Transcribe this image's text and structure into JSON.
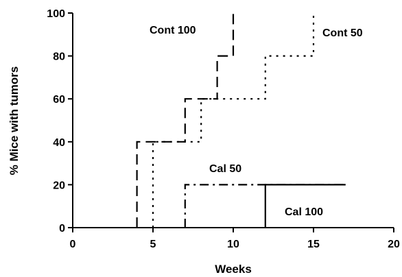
{
  "chart_data": {
    "type": "line",
    "step": true,
    "xlabel": "Weeks",
    "ylabel": "% Mice with tumors",
    "xlim": [
      0,
      20
    ],
    "ylim": [
      0,
      100
    ],
    "xticks": [
      0,
      5,
      10,
      15,
      20
    ],
    "yticks": [
      0,
      20,
      40,
      60,
      80,
      100
    ],
    "grid": false,
    "series": [
      {
        "name": "Cont 100",
        "style": "dashed",
        "points": [
          [
            4,
            0
          ],
          [
            4,
            40
          ],
          [
            7,
            40
          ],
          [
            7,
            60
          ],
          [
            9,
            60
          ],
          [
            9,
            80
          ],
          [
            10,
            80
          ],
          [
            10,
            100
          ]
        ]
      },
      {
        "name": "Cont 50",
        "style": "dotted",
        "points": [
          [
            5,
            0
          ],
          [
            5,
            40
          ],
          [
            8,
            40
          ],
          [
            8,
            60
          ],
          [
            12,
            60
          ],
          [
            12,
            80
          ],
          [
            15,
            80
          ],
          [
            15,
            100
          ]
        ]
      },
      {
        "name": "Cal 50",
        "style": "dash-dot",
        "points": [
          [
            7,
            0
          ],
          [
            7,
            20
          ],
          [
            17,
            20
          ]
        ]
      },
      {
        "name": "Cal 100",
        "style": "solid",
        "points": [
          [
            12,
            0
          ],
          [
            12,
            20
          ],
          [
            17,
            20
          ]
        ]
      }
    ]
  }
}
